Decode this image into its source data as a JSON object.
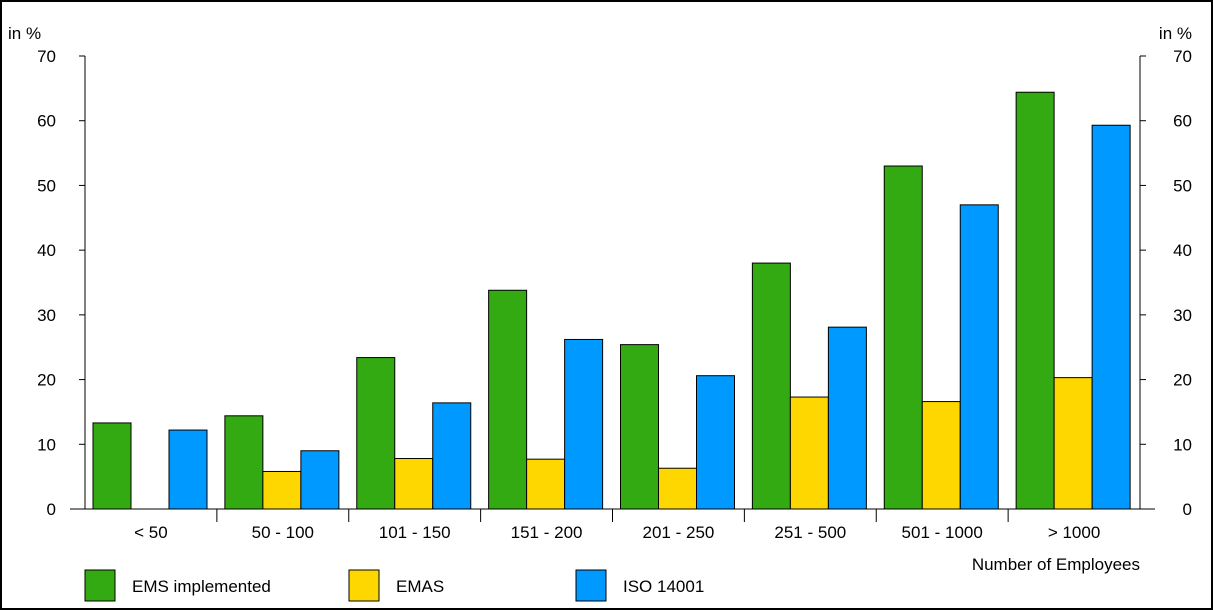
{
  "chart_data": {
    "type": "bar",
    "categories": [
      "< 50",
      "50 - 100",
      "101 - 150",
      "151 - 200",
      "201 - 250",
      "251 - 500",
      "501 - 1000",
      "> 1000"
    ],
    "series": [
      {
        "name": "EMS implemented",
        "color": "#33aa11",
        "values": [
          13.3,
          14.4,
          23.4,
          33.8,
          25.4,
          38.0,
          53.0,
          64.4
        ]
      },
      {
        "name": "EMAS",
        "color": "#ffd700",
        "values": [
          0,
          5.8,
          7.8,
          7.7,
          6.3,
          17.3,
          16.6,
          20.3
        ]
      },
      {
        "name": "ISO 14001",
        "color": "#0099ff",
        "values": [
          12.2,
          9.0,
          16.4,
          26.2,
          20.6,
          28.1,
          47.0,
          59.3
        ]
      }
    ],
    "ylabel_left": "in %",
    "ylabel_right": "in %",
    "xlabel": "Number of Employees",
    "ylim": [
      0,
      70
    ],
    "yticks": [
      0,
      10,
      20,
      30,
      40,
      50,
      60,
      70
    ],
    "legend_position": "bottom-left",
    "grid": false
  }
}
